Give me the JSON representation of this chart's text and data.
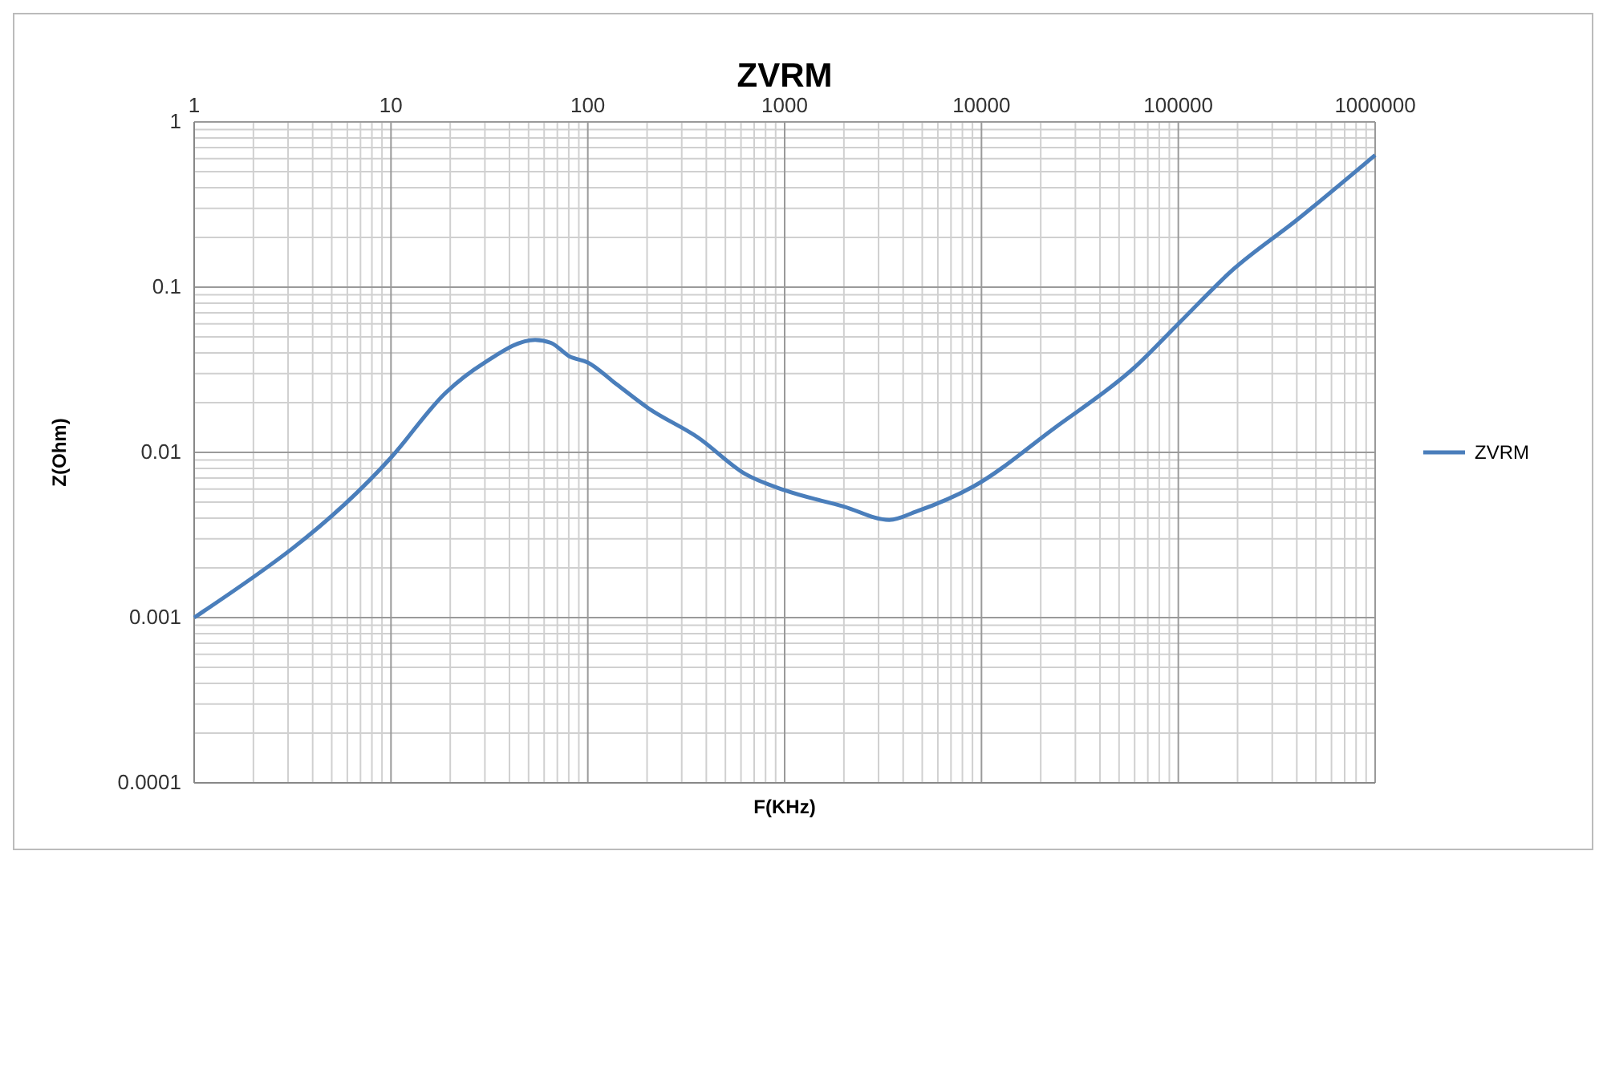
{
  "chart_data": {
    "type": "line",
    "title": "ZVRM",
    "xlabel": "F(KHz)",
    "ylabel": "Z(Ohm)",
    "log": "xy",
    "grid": true,
    "legend": "right",
    "line_style": "solid",
    "marker": "none",
    "xlim": [
      1,
      1000000
    ],
    "xticks": [
      1,
      10,
      100,
      1000,
      10000,
      100000,
      1000000
    ],
    "ylim": [
      0.0001,
      1
    ],
    "yticks": [
      0.0001,
      0.001,
      0.01,
      0.1,
      1
    ],
    "series": [
      {
        "name": "ZVRM",
        "color": "#4a7ebb",
        "x": [
          1,
          10,
          19,
          30,
          54,
          65,
          81,
          100,
          139,
          203,
          363,
          630,
          1000,
          2000,
          3400,
          4700,
          9060,
          23400,
          60500,
          100000,
          190000,
          400000,
          1000000
        ],
        "values": [
          0.001,
          0.0093,
          0.023,
          0.035,
          0.048,
          0.046,
          0.038,
          0.035,
          0.026,
          0.0185,
          0.0123,
          0.0074,
          0.0059,
          0.0047,
          0.0039,
          0.0044,
          0.0062,
          0.014,
          0.033,
          0.06,
          0.128,
          0.255,
          0.63
        ]
      }
    ]
  }
}
